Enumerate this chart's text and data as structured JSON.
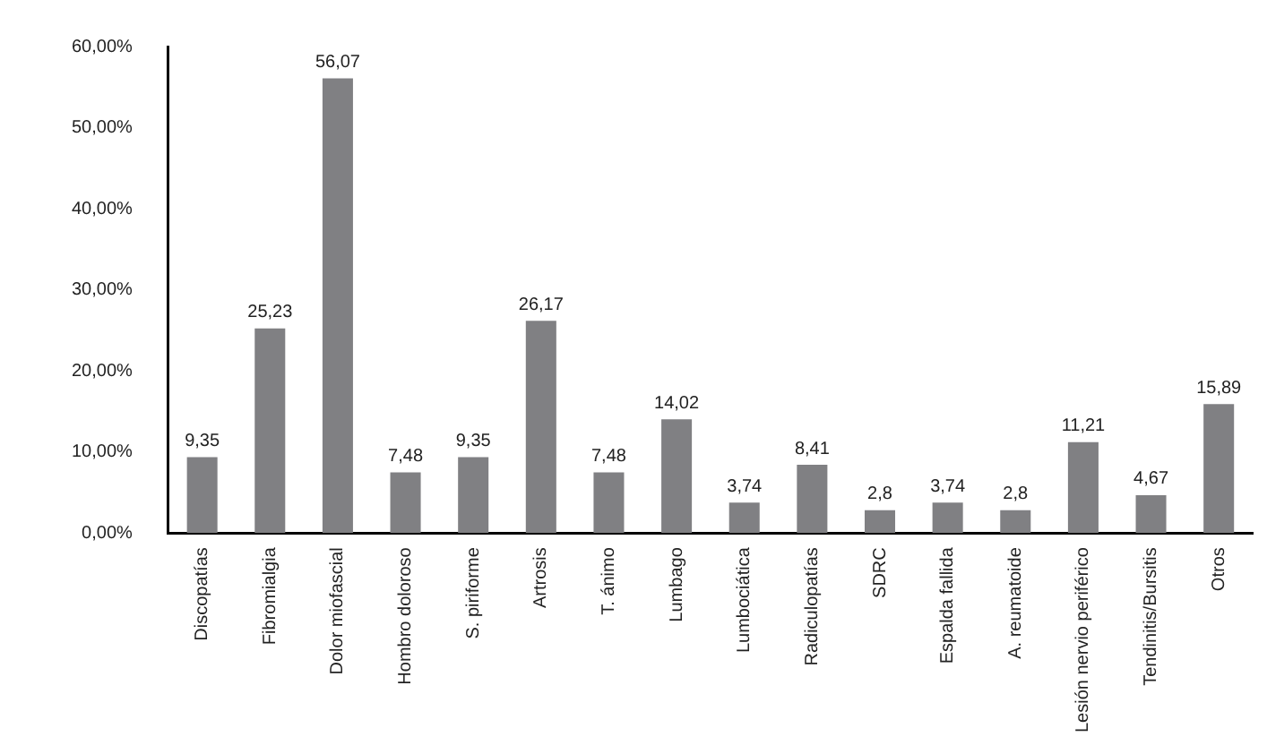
{
  "chart_data": {
    "type": "bar",
    "categories": [
      "Discopatías",
      "Fibromialgia",
      "Dolor miofascial",
      "Hombro doloroso",
      "S. piriforme",
      "Artrosis",
      "T. ánimo",
      "Lumbago",
      "Lumbociática",
      "Radiculopatías",
      "SDRC",
      "Espalda fallida",
      "A. reumatoide",
      "Lesión nervio periférico",
      "Tendinitis/Bursitis",
      "Otros"
    ],
    "values": [
      9.35,
      25.23,
      56.07,
      7.48,
      9.35,
      26.17,
      7.48,
      14.02,
      3.74,
      8.41,
      2.8,
      3.74,
      2.8,
      11.21,
      4.67,
      15.89
    ],
    "value_labels": [
      "9,35",
      "25,23",
      "56,07",
      "7,48",
      "9,35",
      "26,17",
      "7,48",
      "14,02",
      "3,74",
      "8,41",
      "2,8",
      "3,74",
      "2,8",
      "11,21",
      "4,67",
      "15,89"
    ],
    "color": "#808083",
    "ylim": [
      0,
      60
    ],
    "yticks": [
      {
        "value": 0,
        "label": "0,00%"
      },
      {
        "value": 10,
        "label": "10,00%"
      },
      {
        "value": 20,
        "label": "20,00%"
      },
      {
        "value": 30,
        "label": "30,00%"
      },
      {
        "value": 40,
        "label": "40,00%"
      },
      {
        "value": 50,
        "label": "50,00%"
      },
      {
        "value": 60,
        "label": "60,00%"
      }
    ],
    "grid": false,
    "legend": false
  }
}
